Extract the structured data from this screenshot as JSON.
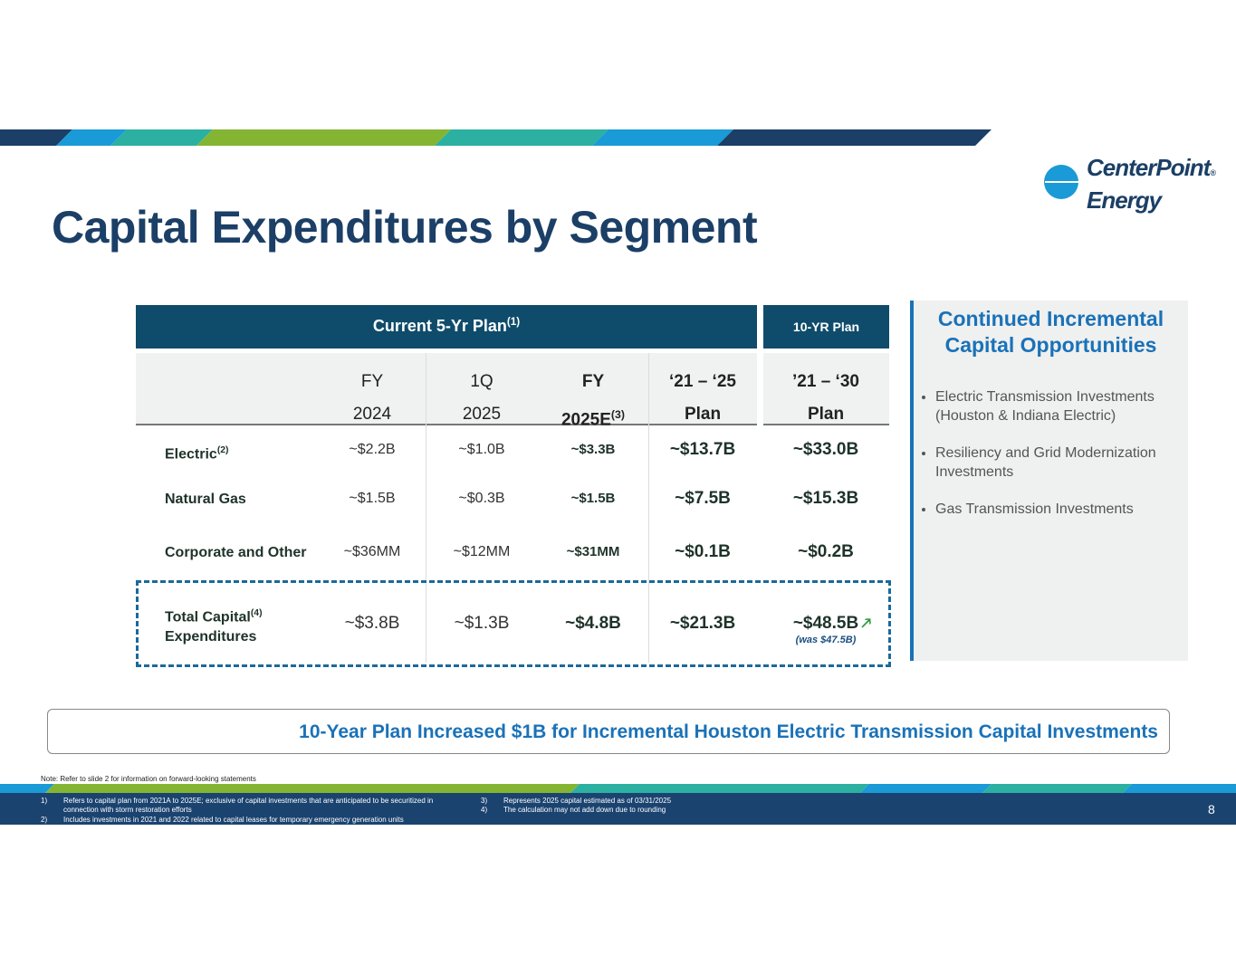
{
  "header": {
    "title": "Capital Expenditures by Segment"
  },
  "logo": {
    "line1": "CenterPoint",
    "line2": "Energy",
    "mark": "®"
  },
  "table": {
    "group_headers": [
      {
        "label": "Current 5-Yr Plan",
        "sup": "(1)"
      },
      {
        "label": "10-YR Plan"
      }
    ],
    "columns": [
      {
        "line1": "FY",
        "line2": "2024"
      },
      {
        "line1": "1Q",
        "line2": "2025"
      },
      {
        "line1": "FY",
        "line2": "2025E",
        "sup": "(3)"
      },
      {
        "line1": "‘21 – ‘25",
        "line2": "Plan"
      },
      {
        "line1": "’21 – ‘30",
        "line2": "Plan"
      }
    ],
    "rows": [
      {
        "label": "Electric",
        "sup": "(2)",
        "cells": [
          "~$2.2B",
          "~$1.0B",
          "~$3.3B",
          "~$13.7B",
          "~$33.0B"
        ]
      },
      {
        "label": "Natural Gas",
        "cells": [
          "~$1.5B",
          "~$0.3B",
          "~$1.5B",
          "~$7.5B",
          "~$15.3B"
        ]
      },
      {
        "label": "Corporate and Other",
        "cells": [
          "~$36MM",
          "~$12MM",
          "~$31MM",
          "~$0.1B",
          "~$0.2B"
        ]
      },
      {
        "label": "Total Capital",
        "sup": "(4)",
        "label2": "Expenditures",
        "cells": [
          "~$3.8B",
          "~$1.3B",
          "~$4.8B",
          "~$21.3B",
          "~$48.5B"
        ],
        "note": "(was $47.5B)"
      }
    ]
  },
  "side_panel": {
    "title": "Continued Incremental Capital Opportunities",
    "bullets": [
      "Electric Transmission Investments (Houston & Indiana Electric)",
      "Resiliency and Grid Modernization Investments",
      "Gas Transmission Investments"
    ]
  },
  "banner": "10-Year Plan Increased $1B for Incremental Houston Electric Transmission Capital Investments",
  "note": "Note: Refer to slide 2 for information on forward-looking statements",
  "footnotes": [
    {
      "num": "1)",
      "text": "Refers to capital plan from 2021A to 2025E; exclusive of capital investments that are anticipated to be securitized in connection with storm restoration efforts"
    },
    {
      "num": "2)",
      "text": "Includes investments in 2021 and 2022 related to capital leases for temporary emergency generation units"
    },
    {
      "num": "3)",
      "text": "Represents 2025 capital estimated as of 03/31/2025"
    },
    {
      "num": "4)",
      "text": "The calculation may not add down due to rounding"
    }
  ],
  "page_number": "8"
}
